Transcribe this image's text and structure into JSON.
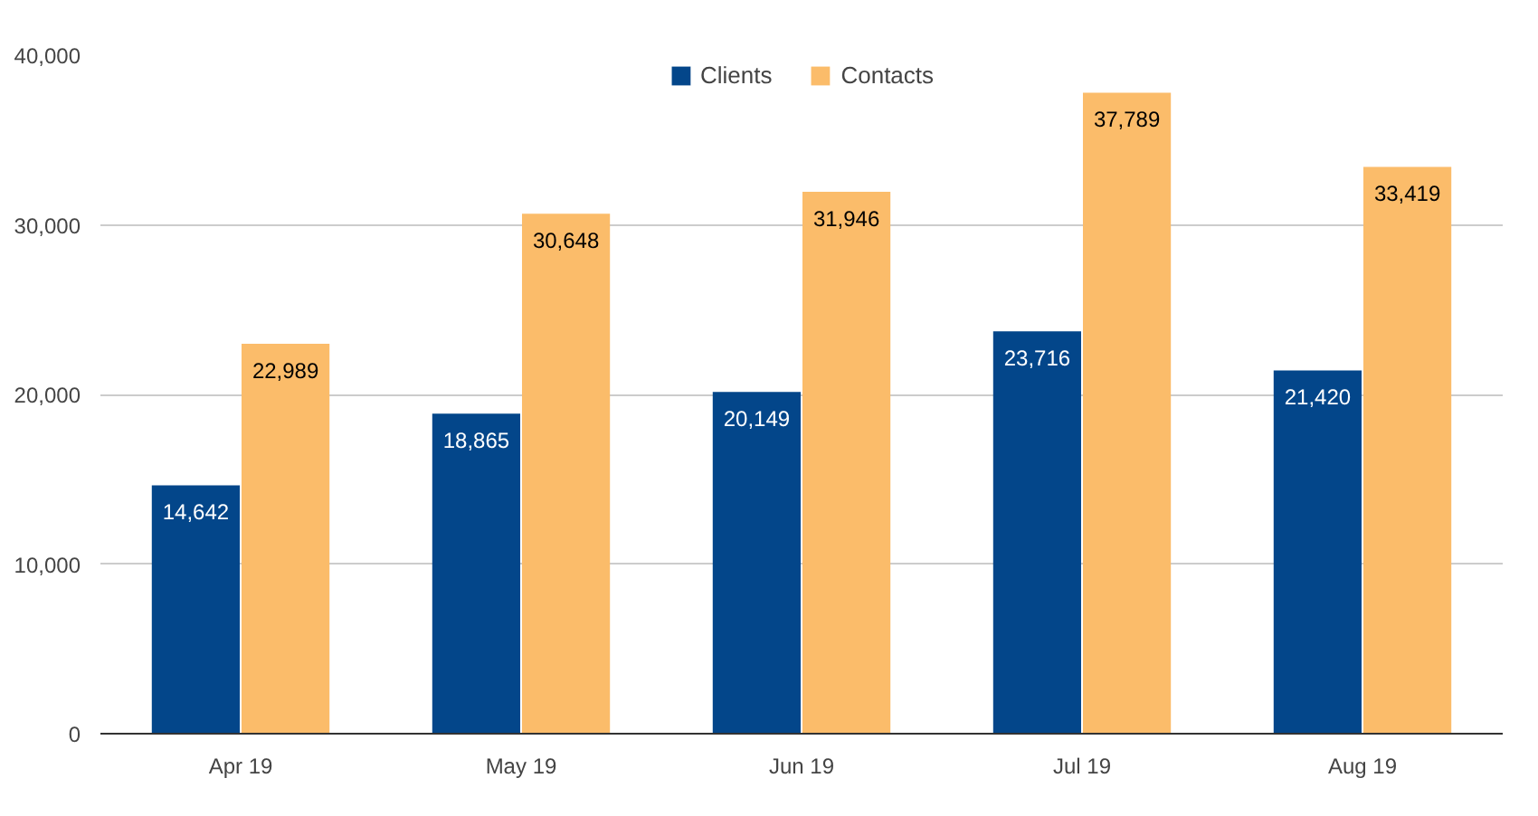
{
  "chart_data": {
    "type": "bar",
    "categories": [
      "Apr 19",
      "May 19",
      "Jun 19",
      "Jul 19",
      "Aug 19"
    ],
    "series": [
      {
        "name": "Clients",
        "color": "#03468a",
        "values": [
          14642,
          18865,
          20149,
          23716,
          21420
        ],
        "value_labels": [
          "14,642",
          "18,865",
          "20,149",
          "23,716",
          "21,420"
        ]
      },
      {
        "name": "Contacts",
        "color": "#fbbc6a",
        "values": [
          22989,
          30648,
          31946,
          37789,
          33419
        ],
        "value_labels": [
          "22,989",
          "30,648",
          "31,946",
          "37,789",
          "33,419"
        ]
      }
    ],
    "ylim": [
      0,
      40000
    ],
    "yticks": [
      0,
      {
        "value": 10000,
        "label": "10,000"
      },
      {
        "value": 20000,
        "label": "20,000"
      },
      {
        "value": 30000,
        "label": "30,000"
      },
      {
        "value": 40000,
        "label": "40,000"
      }
    ],
    "grid": "y",
    "legend": "top"
  }
}
